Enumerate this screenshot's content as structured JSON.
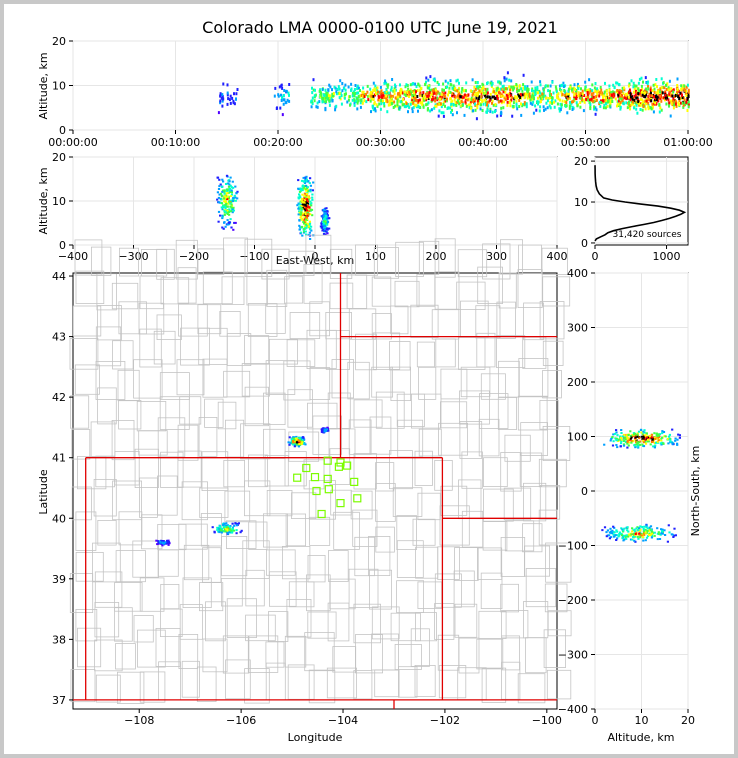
{
  "chart_data": {
    "type": "scatter",
    "title": "Colorado LMA 0000-0100 UTC June 19, 2021",
    "panels": {
      "time_altitude": {
        "ylabel": "Altitude, km",
        "ylim": [
          0,
          20
        ],
        "yticks": [
          "0",
          "10",
          "20"
        ],
        "xticks": [
          "00:00:00",
          "00:10:00",
          "00:20:00",
          "00:30:00",
          "00:40:00",
          "00:50:00",
          "01:00:00"
        ],
        "xlim_minutes": [
          0,
          60
        ],
        "density_regions": [
          {
            "t_min": 14,
            "t_max": 16,
            "alt_min": 4,
            "alt_max": 12,
            "density": 0.25
          },
          {
            "t_min": 19.5,
            "t_max": 21,
            "alt_min": 3,
            "alt_max": 13,
            "density": 0.35
          },
          {
            "t_min": 23,
            "t_max": 28,
            "alt_min": 4,
            "alt_max": 12,
            "density": 0.55
          },
          {
            "t_min": 28,
            "t_max": 33,
            "alt_min": 3,
            "alt_max": 12,
            "density": 0.75
          },
          {
            "t_min": 33,
            "t_max": 44,
            "alt_min": 2,
            "alt_max": 13,
            "density": 0.85
          },
          {
            "t_min": 44,
            "t_max": 48,
            "alt_min": 3,
            "alt_max": 12,
            "density": 0.65
          },
          {
            "t_min": 48,
            "t_max": 54,
            "alt_min": 3,
            "alt_max": 12,
            "density": 0.8
          },
          {
            "t_min": 54,
            "t_max": 60,
            "alt_min": 3,
            "alt_max": 13,
            "density": 0.95
          }
        ]
      },
      "east_west_altitude": {
        "xlabel": "East-West, km",
        "ylabel": "Altitude, km",
        "xlim": [
          -400,
          400
        ],
        "ylim": [
          0,
          20
        ],
        "xticks": [
          "−400",
          "−300",
          "−200",
          "−100",
          "0",
          "100",
          "200",
          "300",
          "400"
        ],
        "yticks": [
          "0",
          "10",
          "20"
        ],
        "clusters": [
          {
            "x_min": -165,
            "x_max": -128,
            "alt_min": 3,
            "alt_max": 17,
            "density": 0.7
          },
          {
            "x_min": -32,
            "x_max": -3,
            "alt_min": 1,
            "alt_max": 16,
            "density": 1.0
          },
          {
            "x_min": 8,
            "x_max": 22,
            "alt_min": 2,
            "alt_max": 9,
            "density": 0.55
          }
        ]
      },
      "altitude_histogram": {
        "label": "31,420 sources",
        "xticks": [
          "0",
          "1000"
        ],
        "yticks": [
          "0",
          "10",
          "20"
        ],
        "xlim": [
          0,
          1300
        ],
        "ylim": [
          -0.5,
          21
        ],
        "profile": [
          [
            0,
            0.5
          ],
          [
            20,
            1.0
          ],
          [
            80,
            1.5
          ],
          [
            140,
            2.0
          ],
          [
            180,
            2.5
          ],
          [
            260,
            3.0
          ],
          [
            380,
            3.5
          ],
          [
            520,
            4.0
          ],
          [
            680,
            4.5
          ],
          [
            820,
            5.0
          ],
          [
            940,
            5.5
          ],
          [
            1040,
            6.0
          ],
          [
            1130,
            6.5
          ],
          [
            1200,
            7.0
          ],
          [
            1250,
            7.5
          ],
          [
            1180,
            8.0
          ],
          [
            1060,
            8.5
          ],
          [
            880,
            9.0
          ],
          [
            640,
            9.5
          ],
          [
            420,
            10.0
          ],
          [
            240,
            10.5
          ],
          [
            120,
            11.0
          ],
          [
            60,
            12.0
          ],
          [
            30,
            13.0
          ],
          [
            15,
            14.0
          ],
          [
            8,
            15.0
          ],
          [
            4,
            16.0
          ],
          [
            2,
            17.0
          ],
          [
            1,
            18.0
          ],
          [
            0,
            19.0
          ]
        ]
      },
      "plan_view": {
        "xlabel": "Longitude",
        "ylabel": "Latitude",
        "xlim": [
          -109.3,
          -99.8
        ],
        "ylim": [
          36.85,
          44.05
        ],
        "xticks": [
          "−108",
          "−106",
          "−104",
          "−102",
          "−100"
        ],
        "yticks": [
          "37",
          "38",
          "39",
          "40",
          "41",
          "42",
          "43",
          "44"
        ],
        "stations": [
          [
            -104.9,
            40.67
          ],
          [
            -104.72,
            40.83
          ],
          [
            -104.55,
            40.68
          ],
          [
            -104.52,
            40.45
          ],
          [
            -104.3,
            40.95
          ],
          [
            -104.3,
            40.65
          ],
          [
            -104.28,
            40.48
          ],
          [
            -104.08,
            40.85
          ],
          [
            -104.05,
            40.92
          ],
          [
            -103.92,
            40.87
          ],
          [
            -103.78,
            40.6
          ],
          [
            -103.72,
            40.33
          ],
          [
            -104.05,
            40.25
          ],
          [
            -104.42,
            40.07
          ]
        ],
        "clusters": [
          {
            "lon_min": -105.1,
            "lon_max": -104.75,
            "lat_min": 41.18,
            "lat_max": 41.35,
            "density": 1.0
          },
          {
            "lon_min": -106.6,
            "lon_max": -106.0,
            "lat_min": 39.72,
            "lat_max": 39.93,
            "density": 0.7
          },
          {
            "lon_min": -107.7,
            "lon_max": -107.4,
            "lat_min": 39.55,
            "lat_max": 39.65,
            "density": 0.35
          },
          {
            "lon_min": -104.45,
            "lon_max": -104.3,
            "lat_min": 41.4,
            "lat_max": 41.5,
            "density": 0.4
          }
        ]
      },
      "altitude_north_south": {
        "xlabel": "Altitude, km",
        "ylabel": "North-South, km",
        "xlim": [
          0,
          20
        ],
        "ylim": [
          -400,
          400
        ],
        "xticks": [
          "0",
          "10",
          "20"
        ],
        "yticks": [
          "−400",
          "−300",
          "−200",
          "−100",
          "0",
          "100",
          "200",
          "300",
          "400"
        ],
        "clusters": [
          {
            "alt_min": 1,
            "alt_max": 19,
            "ns_min": 78,
            "ns_max": 115,
            "density": 1.0
          },
          {
            "alt_min": 1,
            "alt_max": 18,
            "ns_min": -95,
            "ns_max": -60,
            "density": 0.75
          }
        ]
      }
    },
    "colormap": [
      "#5000ff",
      "#2020ff",
      "#00a0ff",
      "#00ffd0",
      "#40ff40",
      "#ffff00",
      "#ff8000",
      "#ff0000",
      "#000000"
    ]
  }
}
